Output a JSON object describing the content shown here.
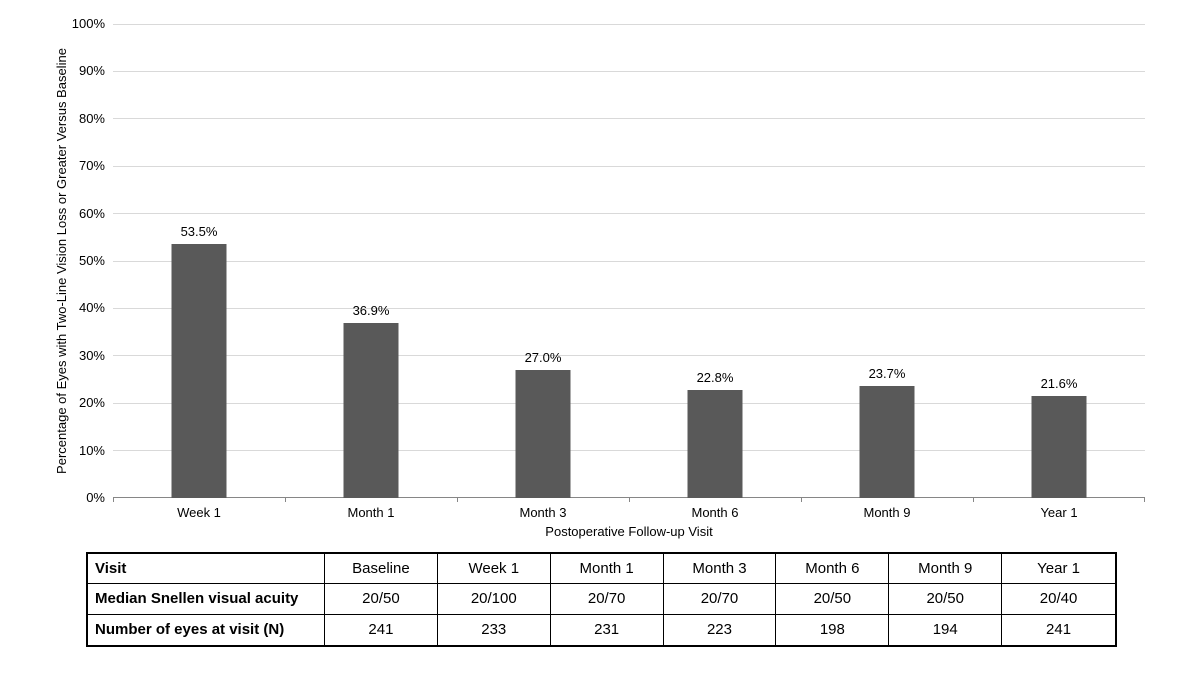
{
  "chart_data": {
    "type": "bar",
    "title": "",
    "xlabel": "Postoperative Follow-up Visit",
    "ylabel": "Percentage of Eyes with Two-Line Vision Loss or Greater Versus Baseline",
    "categories": [
      "Week 1",
      "Month 1",
      "Month 3",
      "Month 6",
      "Month 9",
      "Year 1"
    ],
    "values": [
      53.5,
      36.9,
      27.0,
      22.8,
      23.7,
      21.6
    ],
    "value_labels": [
      "53.5%",
      "36.9%",
      "27.0%",
      "22.8%",
      "23.7%",
      "21.6%"
    ],
    "ylim": [
      0,
      100
    ],
    "ytick_values": [
      0,
      10,
      20,
      30,
      40,
      50,
      60,
      70,
      80,
      90,
      100
    ],
    "ytick_labels": [
      "0%",
      "10%",
      "20%",
      "30%",
      "40%",
      "50%",
      "60%",
      "70%",
      "80%",
      "90%",
      "100%"
    ],
    "grid": "horizontal",
    "legend": "none",
    "colors": {
      "bar": "#595959",
      "gridline": "#d9d9d9",
      "axis_line": "#868686",
      "text": "#000000",
      "background": "#ffffff"
    }
  },
  "table": {
    "rows": [
      {
        "label": "Visit",
        "cells": [
          "Baseline",
          "Week 1",
          "Month 1",
          "Month 3",
          "Month 6",
          "Month 9",
          "Year 1"
        ]
      },
      {
        "label": "Median Snellen visual acuity",
        "cells": [
          "20/50",
          "20/100",
          "20/70",
          "20/70",
          "20/50",
          "20/50",
          "20/40"
        ]
      },
      {
        "label": "Number of eyes at visit (N)",
        "cells": [
          "241",
          "233",
          "231",
          "223",
          "198",
          "194",
          "241"
        ]
      }
    ]
  }
}
